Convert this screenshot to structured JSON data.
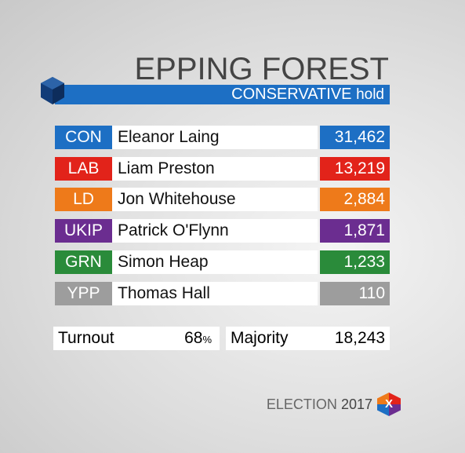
{
  "header": {
    "title": "EPPING FOREST",
    "result": "CONSERVATIVE",
    "result_suffix": "hold",
    "color": "#1d6fc4"
  },
  "table": {
    "rows": [
      {
        "party": "CON",
        "candidate": "Eleanor Laing",
        "votes": "31,462",
        "color": "#1d6fc4"
      },
      {
        "party": "LAB",
        "candidate": "Liam Preston",
        "votes": "13,219",
        "color": "#e2231a"
      },
      {
        "party": "LD",
        "candidate": "Jon Whitehouse",
        "votes": "2,884",
        "color": "#ee7a1a"
      },
      {
        "party": "UKIP",
        "candidate": "Patrick O'Flynn",
        "votes": "1,871",
        "color": "#6b2d90"
      },
      {
        "party": "GRN",
        "candidate": "Simon Heap",
        "votes": "1,233",
        "color": "#2a8b3a"
      },
      {
        "party": "YPP",
        "candidate": "Thomas Hall",
        "votes": "110",
        "color": "#9d9d9d"
      }
    ]
  },
  "summary": {
    "turnout_label": "Turnout",
    "turnout": "68",
    "turnout_unit": "%",
    "majority_label": "Majority",
    "majority": "18,243"
  },
  "footer": {
    "brand": "ELECTION",
    "year": "2017",
    "logo": "X"
  }
}
